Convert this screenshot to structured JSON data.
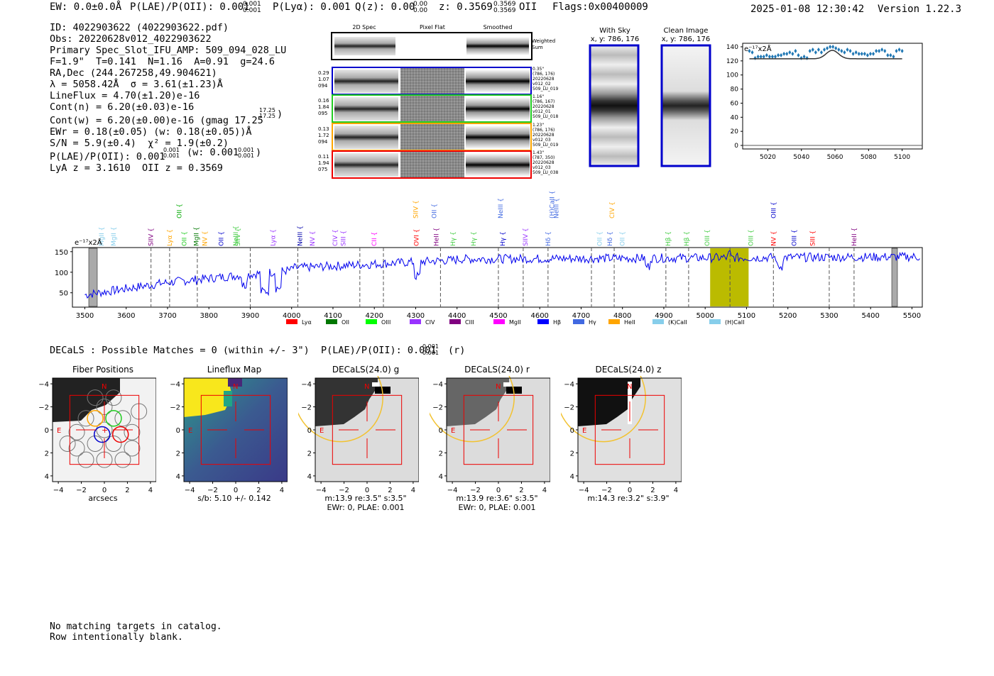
{
  "header": {
    "ew": "EW: 0.0±0.0Å",
    "plae": "P(LAE)/P(OII): 0.001",
    "plae_sup": "0.001",
    "plae_sub": "0.001",
    "plya": "P(Lyα): 0.001",
    "qz": "Q(z): 0.00",
    "qz_sup": "0.00",
    "qz_sub": "0.00",
    "z": "z: 0.3569",
    "z_sup": "0.3569",
    "z_sub": "0.3569",
    "z_type": "OII",
    "flags": "Flags:0x00400009",
    "datetime": "2025-01-08 12:30:42",
    "version": "Version 1.22.3"
  },
  "info": {
    "lines": [
      "ID: 4022903622 (4022903622.pdf)",
      "Obs: 20220628v012_4022903622",
      "Primary Spec_Slot_IFU_AMP: 509_094_028_LU",
      "F=1.9\"  T=0.141  N=1.16  A=0.91  g=24.6",
      "RA,Dec (244.267258,49.904621)",
      "λ = 5058.42Å  σ = 3.61(±1.23)Å",
      "LineFlux = 4.70(±1.20)e-16",
      "Cont(n) = 6.20(±0.03)e-16",
      "Cont(w) = 6.20(±0.00)e-16 (gmag 17.25",
      "EWr = 0.18(±0.05) (w: 0.18(±0.05))Å",
      "S/N = 5.9(±0.4)  χ² = 1.9(±0.2)",
      "P(LAE)/P(OII): 0.001",
      "LyA z = 3.1610  OII z = 0.3569"
    ],
    "gmag_sup": "17.25",
    "gmag_sub": "17.25",
    "plae_sup": "0.001",
    "plae_sub": "0.001",
    "plae_w": "(w: 0.001",
    "plae_w_sup": "0.001",
    "plae_w_sub": "0.001"
  },
  "cutouts": {
    "col_labels": [
      "2D Spec",
      "Pixel Flat",
      "Smoothed"
    ],
    "weighted_label": "Weighted\nSum",
    "rows": [
      {
        "left": "0.29\n1.07\n094",
        "right": "0.35\"\n(786, 176)\n20220628\nv012_02\n509_LU_019",
        "color": "#0000cc"
      },
      {
        "left": "0.16\n1.84\n095",
        "right": "1.16\"\n(786, 167)\n20220628\nv012_01\n509_LU_018",
        "color": "#22cc22"
      },
      {
        "left": "0.13\n1.72\n094",
        "right": "1.23\"\n(786, 176)\n20220628\nv012_03\n509_LU_019",
        "color": "#ffa500"
      },
      {
        "left": "0.11\n1.94\n075",
        "right": "1.43\"\n(787, 350)\n20220628\nv012_03\n509_LU_038",
        "color": "#ee0000"
      }
    ],
    "with_sky_title": "With Sky",
    "with_sky_xy": "x, y: 786, 176",
    "clean_title": "Clean Image",
    "clean_xy": "x, y: 786, 176"
  },
  "zoom_plot": {
    "ylabel": "e⁻¹⁷x2Å",
    "y_ticks": [
      "140",
      "120",
      "100",
      "80",
      "60",
      "40",
      "20",
      "0"
    ],
    "x_ticks": [
      "5020",
      "5040",
      "5060",
      "5080",
      "5100"
    ],
    "points_y": [
      134,
      132,
      124,
      126,
      126,
      126,
      128,
      126,
      126,
      126,
      128,
      128,
      130,
      130,
      132,
      130,
      134,
      128,
      124,
      126,
      124,
      134,
      136,
      132,
      136,
      132,
      136,
      138,
      140,
      140,
      138,
      136,
      134,
      132,
      136,
      134,
      130,
      132,
      130,
      130,
      130,
      128,
      130,
      130,
      134,
      134,
      136,
      134,
      128,
      128,
      126,
      134,
      136,
      134
    ]
  },
  "spectrum": {
    "ylabel": "e⁻¹⁷x2Å",
    "y_ticks": [
      "150",
      "100",
      "50"
    ],
    "x_ticks": [
      "3500",
      "3600",
      "3700",
      "3800",
      "3900",
      "4000",
      "4100",
      "4200",
      "4300",
      "4400",
      "4500",
      "4600",
      "4700",
      "4800",
      "4900",
      "5000",
      "5100",
      "5200",
      "5300",
      "5400",
      "5500"
    ],
    "legend": [
      {
        "label": "Lyα",
        "color": "#ff0000"
      },
      {
        "label": "OII",
        "color": "#007700"
      },
      {
        "label": "OIII",
        "color": "#00ff00"
      },
      {
        "label": "CIV",
        "color": "#9933ff"
      },
      {
        "label": "CIII",
        "color": "#800080"
      },
      {
        "label": "MgII",
        "color": "#ff00ff"
      },
      {
        "label": "Hβ",
        "color": "#0000ff"
      },
      {
        "label": "Hγ",
        "color": "#4169e1"
      },
      {
        "label": "HeII",
        "color": "#ffa500"
      },
      {
        "label": "(K)CaII",
        "color": "#87ceeb"
      },
      {
        "label": "(H)CaII",
        "color": "#87ceeb"
      }
    ],
    "line_labels": [
      {
        "t": "MgII",
        "c": "#87ceeb",
        "w": 3540,
        "row": 1
      },
      {
        "t": "MgII",
        "c": "#87ceeb",
        "w": 3570,
        "row": 1
      },
      {
        "t": "SIIV",
        "c": "#800080",
        "w": 3660,
        "row": 1
      },
      {
        "t": "Lyα",
        "c": "#ffa500",
        "w": 3705,
        "row": 1
      },
      {
        "t": "OII",
        "c": "#00aa00",
        "w": 3728,
        "row": 0
      },
      {
        "t": "OII",
        "c": "#22cc22",
        "w": 3740,
        "row": 1
      },
      {
        "t": "MgII",
        "c": "#007700",
        "w": 3770,
        "row": 1
      },
      {
        "t": "NV",
        "c": "#ffa500",
        "w": 3790,
        "row": 1
      },
      {
        "t": "OII",
        "c": "#0000cc",
        "w": 3830,
        "row": 1
      },
      {
        "t": "NeIII",
        "c": "#44cc44",
        "w": 3865,
        "row": 1
      },
      {
        "t": "SIIV",
        "c": "#44cc44",
        "w": 3870,
        "row": 1
      },
      {
        "t": "Lyα",
        "c": "#9933ff",
        "w": 3955,
        "row": 1
      },
      {
        "t": "NeIII",
        "c": "#0000aa",
        "w": 4020,
        "row": 1
      },
      {
        "t": "NV",
        "c": "#9933ff",
        "w": 4050,
        "row": 1
      },
      {
        "t": "CIV",
        "c": "#9933ff",
        "w": 4105,
        "row": 1
      },
      {
        "t": "SIII",
        "c": "#9933ff",
        "w": 4125,
        "row": 1
      },
      {
        "t": "CII",
        "c": "#ff00ff",
        "w": 4200,
        "row": 1
      },
      {
        "t": "SIIV",
        "c": "#ffa500",
        "w": 4300,
        "row": 0
      },
      {
        "t": "OVI",
        "c": "#ff0000",
        "w": 4302,
        "row": 1
      },
      {
        "t": "OII",
        "c": "#4169e1",
        "w": 4345,
        "row": 0
      },
      {
        "t": "HeII",
        "c": "#800080",
        "w": 4350,
        "row": 1
      },
      {
        "t": "Hγ",
        "c": "#44cc44",
        "w": 4390,
        "row": 1
      },
      {
        "t": "Hγ",
        "c": "#44cc44",
        "w": 4440,
        "row": 1
      },
      {
        "t": "NeIII",
        "c": "#4169e1",
        "w": 4505,
        "row": 0
      },
      {
        "t": "Hγ",
        "c": "#0000cc",
        "w": 4510,
        "row": 1
      },
      {
        "t": "SIIV",
        "c": "#9933ff",
        "w": 4565,
        "row": 1
      },
      {
        "t": "Hδ",
        "c": "#4169e1",
        "w": 4620,
        "row": 1
      },
      {
        "t": "(H)CaII",
        "c": "#4169e1",
        "w": 4630,
        "row": 0
      },
      {
        "t": "NeIII",
        "c": "#4169e1",
        "w": 4640,
        "row": 0
      },
      {
        "t": "CIV",
        "c": "#ffa500",
        "w": 4775,
        "row": 0
      },
      {
        "t": "OII",
        "c": "#87ceeb",
        "w": 4745,
        "row": 1
      },
      {
        "t": "Hδ",
        "c": "#4169e1",
        "w": 4770,
        "row": 1
      },
      {
        "t": "OII",
        "c": "#87ceeb",
        "w": 4800,
        "row": 1
      },
      {
        "t": "Hβ",
        "c": "#44cc44",
        "w": 4910,
        "row": 1
      },
      {
        "t": "Hβ",
        "c": "#44cc44",
        "w": 4955,
        "row": 1
      },
      {
        "t": "OIII",
        "c": "#44cc44",
        "w": 5005,
        "row": 1
      },
      {
        "t": "OIII",
        "c": "#44cc44",
        "w": 5110,
        "row": 1
      },
      {
        "t": "OIII",
        "c": "#0000cc",
        "w": 5165,
        "row": 0
      },
      {
        "t": "NV",
        "c": "#ff0000",
        "w": 5165,
        "row": 1
      },
      {
        "t": "OIII",
        "c": "#0000cc",
        "w": 5215,
        "row": 1
      },
      {
        "t": "SIII",
        "c": "#ff0000",
        "w": 5260,
        "row": 1
      },
      {
        "t": "HeII",
        "c": "#800080",
        "w": 5360,
        "row": 1
      }
    ]
  },
  "decals": {
    "summary": "DECaLS : Possible Matches = 0 (within +/- 3\")  P(LAE)/P(OII): 0.001",
    "summary_sup": "0.001",
    "summary_sub": "0.001",
    "summary_band": "(r)",
    "ticks": [
      "4",
      "2",
      "0",
      "−2",
      "−4"
    ],
    "xticks": [
      "−4",
      "−2",
      "0",
      "2",
      "4"
    ],
    "panels": [
      {
        "title": "Fiber Positions",
        "cap1": "arcsecs",
        "cap2": ""
      },
      {
        "title": "Lineflux Map",
        "cap1": "s/b: 5.10 +/- 0.142",
        "cap2": ""
      },
      {
        "title": "DECaLS(24.0) g",
        "cap1": "m:13.9  re:3.5\"  s:3.5\"",
        "cap2": "EWr: 0, PLAE: 0.001"
      },
      {
        "title": "DECaLS(24.0) r",
        "cap1": "m:13.9  re:3.6\"  s:3.5\"",
        "cap2": "EWr: 0, PLAE: 0.001"
      },
      {
        "title": "DECaLS(24.0) z",
        "cap1": "m:14.3  re:3.2\"  s:3.9\"",
        "cap2": ""
      }
    ],
    "label_N": "N",
    "label_E": "E"
  },
  "footer": {
    "line1": "No matching targets in catalog.",
    "line2": "Row intentionally blank."
  }
}
